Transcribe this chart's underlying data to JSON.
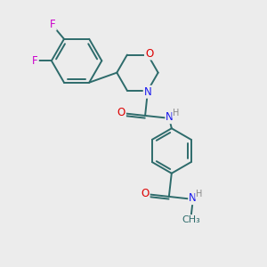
{
  "bg_color": "#ececec",
  "bond_color": "#2d6b6b",
  "bond_width": 1.4,
  "atom_colors": {
    "C": "#2d6b6b",
    "N": "#1a1aee",
    "O": "#dd0000",
    "F": "#cc00cc",
    "H": "#888888"
  },
  "font_size": 8.5,
  "fig_size": [
    3.0,
    3.0
  ],
  "dpi": 100
}
